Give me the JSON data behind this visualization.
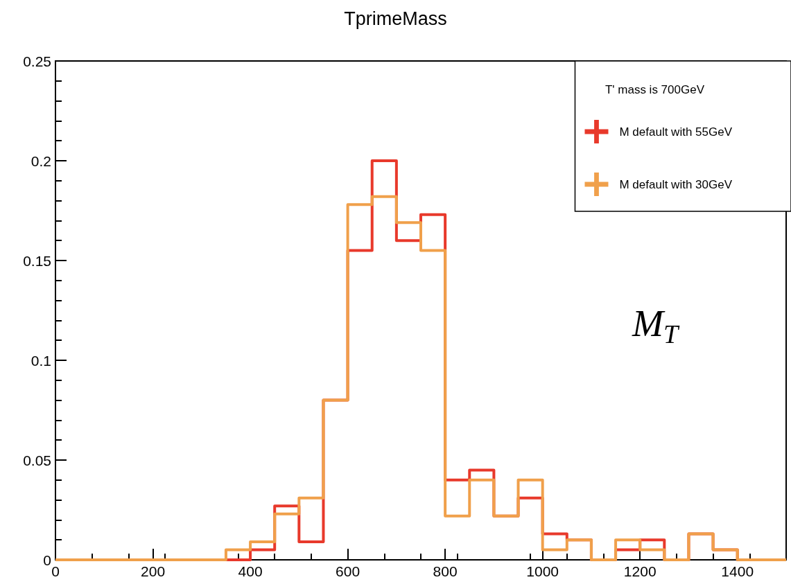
{
  "chart_data": {
    "type": "histogram",
    "title": "TprimeMass",
    "legend_title": "T' mass is 700GeV",
    "annotations": [
      "M$_{T}$"
    ],
    "bins": [
      0,
      50,
      100,
      150,
      200,
      250,
      300,
      350,
      400,
      450,
      500,
      550,
      600,
      650,
      700,
      750,
      800,
      850,
      900,
      950,
      1000,
      1050,
      1100,
      1150,
      1200,
      1250,
      1300,
      1350,
      1400,
      1450,
      1500
    ],
    "series": [
      {
        "name": "M default with 55GeV",
        "color": "#e8392b",
        "values": [
          0,
          0,
          0,
          0,
          0,
          0,
          0,
          0,
          0.005,
          0.027,
          0.009,
          0.08,
          0.155,
          0.2,
          0.16,
          0.173,
          0.04,
          0.045,
          0.022,
          0.031,
          0.013,
          0.01,
          0,
          0.005,
          0.01,
          0,
          0.013,
          0.005,
          0,
          0
        ]
      },
      {
        "name": "M default with 30GeV",
        "color": "#f0a04b",
        "values": [
          0,
          0,
          0,
          0,
          0,
          0,
          0,
          0.005,
          0.009,
          0.023,
          0.031,
          0.08,
          0.178,
          0.182,
          0.169,
          0.155,
          0.022,
          0.04,
          0.022,
          0.04,
          0.005,
          0.01,
          0,
          0.01,
          0.005,
          0,
          0.013,
          0.005,
          0,
          0
        ]
      }
    ],
    "xlim": [
      0,
      1500
    ],
    "xticks": [
      0,
      200,
      400,
      600,
      800,
      1000,
      1200,
      1400
    ],
    "ylim": [
      0,
      0.25
    ],
    "yticks": [
      0,
      0.05,
      0.1,
      0.15,
      0.2,
      0.25
    ],
    "grid": false,
    "legend": "top right",
    "line_style": "solid",
    "marker": "none"
  }
}
